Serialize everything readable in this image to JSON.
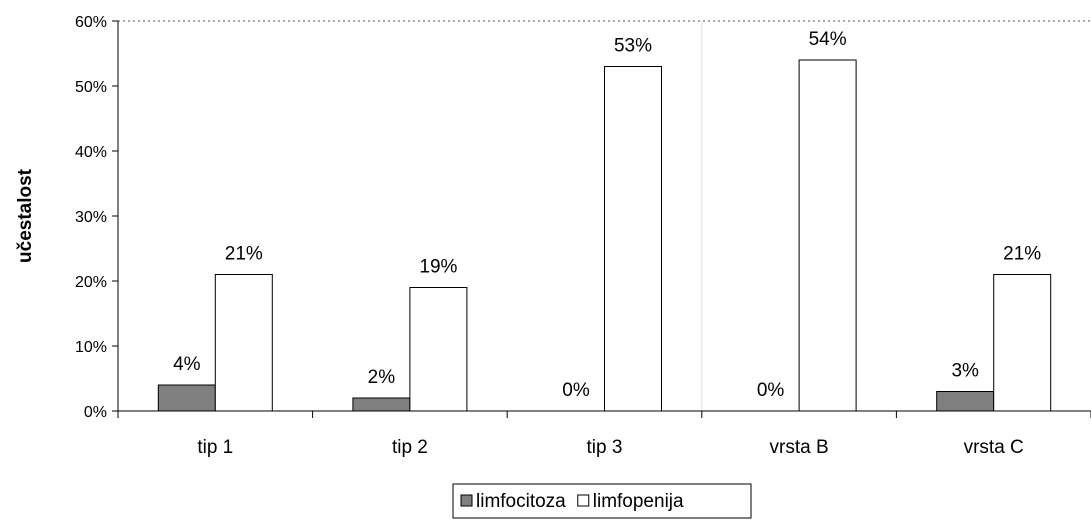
{
  "chart_data": {
    "type": "bar",
    "categories": [
      "tip 1",
      "tip 2",
      "tip 3",
      "vrsta B",
      "vrsta C"
    ],
    "series": [
      {
        "name": "limfocitoza",
        "values": [
          4,
          2,
          0,
          0,
          3
        ],
        "color": "#808080"
      },
      {
        "name": "limfopenija",
        "values": [
          21,
          19,
          53,
          54,
          21
        ],
        "color": "#ffffff"
      }
    ],
    "data_labels": [
      [
        "4%",
        "2%",
        "0%",
        "0%",
        "3%"
      ],
      [
        "21%",
        "19%",
        "53%",
        "54%",
        "21%"
      ]
    ],
    "ylabel": "učestalost",
    "ylim": [
      0,
      60
    ],
    "yticks": [
      0,
      10,
      20,
      30,
      40,
      50,
      60
    ],
    "ytick_labels": [
      "0%",
      "10%",
      "20%",
      "30%",
      "40%",
      "50%",
      "60%"
    ],
    "legend_position": "bottom",
    "grid": "dotted line at 60% only"
  }
}
